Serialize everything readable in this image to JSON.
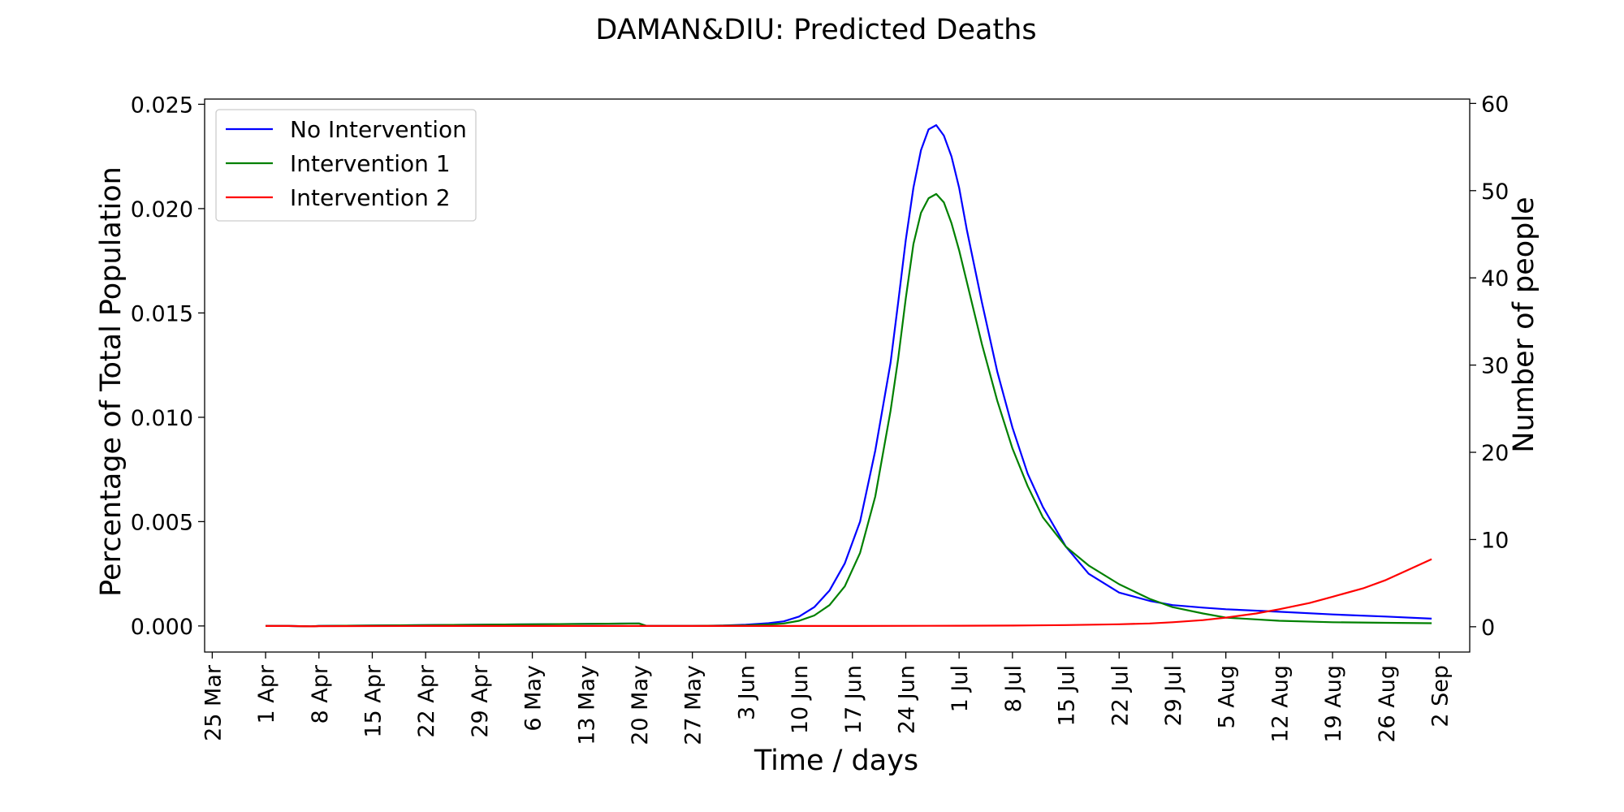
{
  "chart_data": {
    "type": "line",
    "title": "DAMAN&DIU: Predicted Deaths",
    "xlabel": "Time / days",
    "ylabel": "Percentage of Total Population",
    "ylabel_right": "Number of people",
    "x_ticks": [
      "25 Mar",
      "1 Apr",
      "8 Apr",
      "15 Apr",
      "22 Apr",
      "29 Apr",
      "6 May",
      "13 May",
      "20 May",
      "27 May",
      "3 Jun",
      "10 Jun",
      "17 Jun",
      "24 Jun",
      "1 Jul",
      "8 Jul",
      "15 Jul",
      "22 Jul",
      "29 Jul",
      "5 Aug",
      "12 Aug",
      "19 Aug",
      "26 Aug",
      "2 Sep"
    ],
    "xlim": [
      "2020-03-24",
      "2020-09-06"
    ],
    "ylim": [
      -0.00125,
      0.02525
    ],
    "y_ticks": [
      "0.000",
      "0.005",
      "0.010",
      "0.015",
      "0.020",
      "0.025"
    ],
    "ylim_right": [
      -2.9,
      60.5
    ],
    "y_ticks_right": [
      "0",
      "10",
      "20",
      "30",
      "40",
      "50",
      "60"
    ],
    "legend_position": "upper-left",
    "grid": false,
    "series": [
      {
        "name": "No Intervention",
        "color": "#0000ff",
        "x": [
          "2020-04-01",
          "2020-04-04",
          "2020-04-07",
          "2020-04-08",
          "2020-04-15",
          "2020-04-22",
          "2020-04-29",
          "2020-05-06",
          "2020-05-13",
          "2020-05-20",
          "2020-05-21",
          "2020-05-27",
          "2020-05-31",
          "2020-06-03",
          "2020-06-06",
          "2020-06-08",
          "2020-06-10",
          "2020-06-12",
          "2020-06-14",
          "2020-06-16",
          "2020-06-18",
          "2020-06-20",
          "2020-06-22",
          "2020-06-23",
          "2020-06-24",
          "2020-06-25",
          "2020-06-26",
          "2020-06-27",
          "2020-06-28",
          "2020-06-29",
          "2020-06-30",
          "2020-07-01",
          "2020-07-02",
          "2020-07-04",
          "2020-07-06",
          "2020-07-08",
          "2020-07-10",
          "2020-07-12",
          "2020-07-15",
          "2020-07-18",
          "2020-07-22",
          "2020-07-26",
          "2020-07-29",
          "2020-08-02",
          "2020-08-05",
          "2020-08-12",
          "2020-08-19",
          "2020-08-26",
          "2020-09-01"
        ],
        "y": [
          0.0,
          0.0,
          -2e-05,
          0.0,
          2e-05,
          4e-05,
          6e-05,
          8e-05,
          0.0001,
          0.00012,
          0.0,
          0.0,
          2e-05,
          6e-05,
          0.00013,
          0.00022,
          0.00045,
          0.0009,
          0.0017,
          0.003,
          0.005,
          0.0084,
          0.0126,
          0.0155,
          0.0185,
          0.021,
          0.0228,
          0.0238,
          0.024,
          0.0235,
          0.0225,
          0.021,
          0.019,
          0.0155,
          0.0122,
          0.0095,
          0.0073,
          0.0057,
          0.0038,
          0.0025,
          0.0016,
          0.0012,
          0.001,
          0.00088,
          0.0008,
          0.00068,
          0.00055,
          0.00045,
          0.00035
        ]
      },
      {
        "name": "Intervention 1",
        "color": "#008000",
        "x": [
          "2020-04-01",
          "2020-04-04",
          "2020-04-07",
          "2020-04-08",
          "2020-04-15",
          "2020-04-22",
          "2020-04-29",
          "2020-05-06",
          "2020-05-13",
          "2020-05-20",
          "2020-05-21",
          "2020-05-27",
          "2020-06-03",
          "2020-06-06",
          "2020-06-08",
          "2020-06-10",
          "2020-06-12",
          "2020-06-14",
          "2020-06-16",
          "2020-06-18",
          "2020-06-20",
          "2020-06-22",
          "2020-06-23",
          "2020-06-24",
          "2020-06-25",
          "2020-06-26",
          "2020-06-27",
          "2020-06-28",
          "2020-06-29",
          "2020-06-30",
          "2020-07-01",
          "2020-07-02",
          "2020-07-04",
          "2020-07-06",
          "2020-07-08",
          "2020-07-10",
          "2020-07-12",
          "2020-07-15",
          "2020-07-18",
          "2020-07-22",
          "2020-07-26",
          "2020-07-29",
          "2020-08-02",
          "2020-08-05",
          "2020-08-12",
          "2020-08-19",
          "2020-08-26",
          "2020-09-01"
        ],
        "y": [
          0.0,
          0.0,
          -2e-05,
          0.0,
          2e-05,
          4e-05,
          6e-05,
          8e-05,
          0.0001,
          0.00012,
          0.0,
          0.0,
          3e-05,
          7e-05,
          0.00012,
          0.00025,
          0.0005,
          0.001,
          0.0019,
          0.0035,
          0.0062,
          0.0103,
          0.0128,
          0.0157,
          0.0183,
          0.0198,
          0.0205,
          0.0207,
          0.0203,
          0.0193,
          0.018,
          0.0165,
          0.0135,
          0.0108,
          0.0085,
          0.0067,
          0.0052,
          0.0038,
          0.0029,
          0.002,
          0.0013,
          0.0009,
          0.0006,
          0.0004,
          0.00025,
          0.00018,
          0.00015,
          0.00013
        ]
      },
      {
        "name": "Intervention 2",
        "color": "#ff0000",
        "x": [
          "2020-04-01",
          "2020-04-04",
          "2020-04-07",
          "2020-04-08",
          "2020-04-22",
          "2020-05-06",
          "2020-05-20",
          "2020-06-03",
          "2020-06-17",
          "2020-07-01",
          "2020-07-08",
          "2020-07-15",
          "2020-07-22",
          "2020-07-26",
          "2020-07-29",
          "2020-08-02",
          "2020-08-05",
          "2020-08-09",
          "2020-08-12",
          "2020-08-16",
          "2020-08-19",
          "2020-08-23",
          "2020-08-26",
          "2020-08-29",
          "2020-09-01"
        ],
        "y": [
          0.0,
          0.0,
          -2e-05,
          -1e-05,
          0.0,
          0.0,
          0.0,
          0.0,
          0.0,
          1e-05,
          2e-05,
          4e-05,
          8e-05,
          0.00012,
          0.00018,
          0.00028,
          0.0004,
          0.0006,
          0.0008,
          0.0011,
          0.0014,
          0.0018,
          0.0022,
          0.0027,
          0.0032
        ]
      }
    ]
  }
}
